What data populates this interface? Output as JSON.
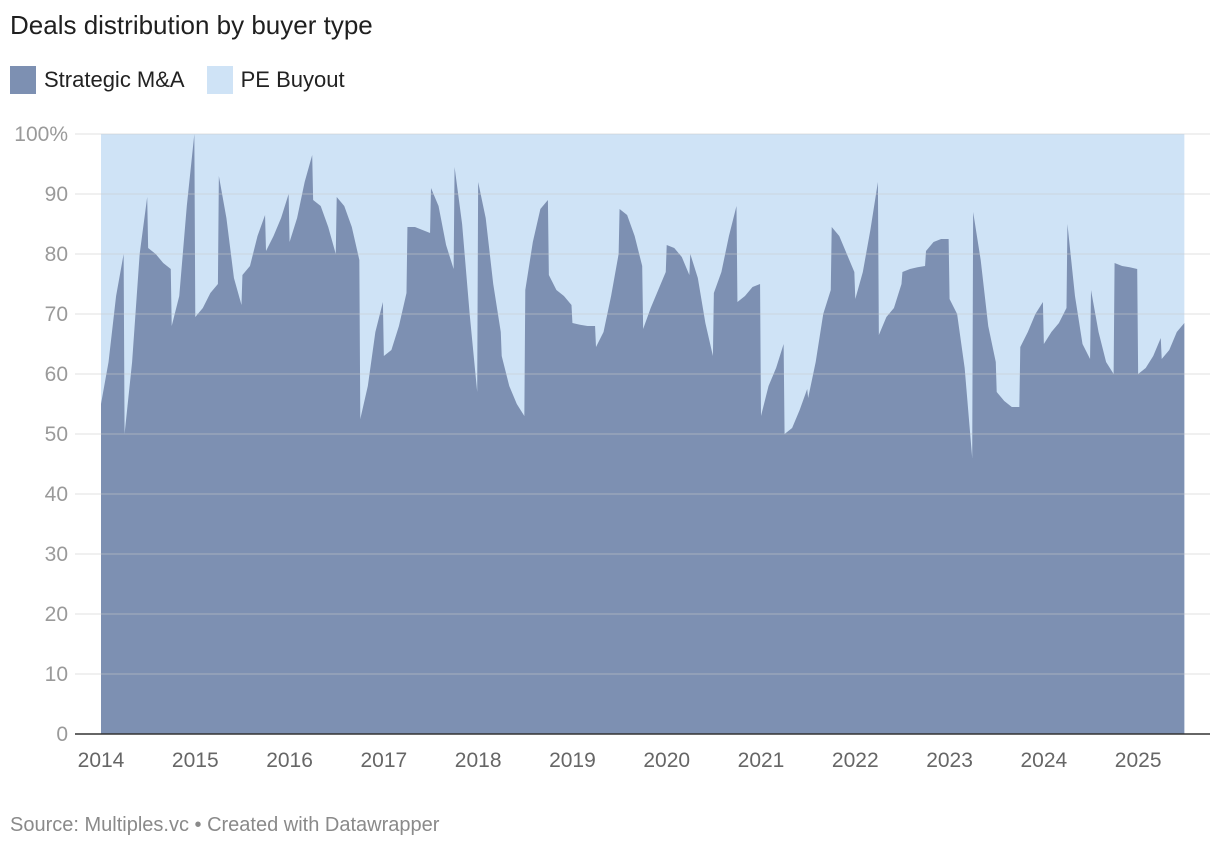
{
  "title": "Deals distribution by buyer type",
  "source": "Source: Multiples.vc • Created with Datawrapper",
  "colors": {
    "strategic": "#7d90b2",
    "pe": "#cfe3f6",
    "grid": "#e3e3e3",
    "axis": "#333333"
  },
  "chart_data": {
    "type": "area",
    "title": "Deals distribution by buyer type",
    "xlabel": "",
    "ylabel": "",
    "ylim": [
      0,
      100
    ],
    "xlim": [
      2014.0,
      2025.55
    ],
    "yticks": [
      {
        "value": 100,
        "label": "100%"
      },
      {
        "value": 90,
        "label": "90"
      },
      {
        "value": 80,
        "label": "80"
      },
      {
        "value": 70,
        "label": "70"
      },
      {
        "value": 60,
        "label": "60"
      },
      {
        "value": 50,
        "label": "50"
      },
      {
        "value": 40,
        "label": "40"
      },
      {
        "value": 30,
        "label": "30"
      },
      {
        "value": 20,
        "label": "20"
      },
      {
        "value": 10,
        "label": "10"
      },
      {
        "value": 0,
        "label": "0"
      }
    ],
    "xticks": [
      {
        "value": 2014,
        "label": "2014"
      },
      {
        "value": 2015,
        "label": "2015"
      },
      {
        "value": 2016,
        "label": "2016"
      },
      {
        "value": 2017,
        "label": "2017"
      },
      {
        "value": 2018,
        "label": "2018"
      },
      {
        "value": 2019,
        "label": "2019"
      },
      {
        "value": 2020,
        "label": "2020"
      },
      {
        "value": 2021,
        "label": "2021"
      },
      {
        "value": 2022,
        "label": "2022"
      },
      {
        "value": 2023,
        "label": "2023"
      },
      {
        "value": 2024,
        "label": "2024"
      },
      {
        "value": 2025,
        "label": "2025"
      }
    ],
    "legend": [
      {
        "name": "Strategic M&A",
        "color": "#7d90b2"
      },
      {
        "name": "PE Buyout",
        "color": "#cfe3f6"
      }
    ],
    "series": [
      {
        "name": "Strategic M&A",
        "x": [
          2014.0,
          2014.08,
          2014.16,
          2014.24,
          2014.25,
          2014.33,
          2014.41,
          2014.49,
          2014.5,
          2014.58,
          2014.66,
          2014.74,
          2014.75,
          2014.83,
          2014.91,
          2014.99,
          2015.0,
          2015.08,
          2015.16,
          2015.24,
          2015.25,
          2015.33,
          2015.41,
          2015.49,
          2015.5,
          2015.58,
          2015.66,
          2015.74,
          2015.75,
          2015.83,
          2015.91,
          2015.99,
          2016.0,
          2016.08,
          2016.16,
          2016.24,
          2016.25,
          2016.33,
          2016.41,
          2016.49,
          2016.5,
          2016.58,
          2016.66,
          2016.74,
          2016.75,
          2016.83,
          2016.91,
          2016.99,
          2017.0,
          2017.08,
          2017.16,
          2017.24,
          2017.25,
          2017.33,
          2017.41,
          2017.49,
          2017.5,
          2017.58,
          2017.66,
          2017.74,
          2017.75,
          2017.83,
          2017.91,
          2017.99,
          2018.0,
          2018.08,
          2018.16,
          2018.24,
          2018.25,
          2018.33,
          2018.41,
          2018.49,
          2018.5,
          2018.58,
          2018.66,
          2018.74,
          2018.75,
          2018.83,
          2018.91,
          2018.99,
          2019.0,
          2019.08,
          2019.16,
          2019.24,
          2019.25,
          2019.33,
          2019.41,
          2019.49,
          2019.5,
          2019.58,
          2019.66,
          2019.74,
          2019.75,
          2019.83,
          2019.91,
          2019.99,
          2020.0,
          2020.08,
          2020.16,
          2020.24,
          2020.25,
          2020.33,
          2020.41,
          2020.49,
          2020.5,
          2020.58,
          2020.66,
          2020.74,
          2020.75,
          2020.83,
          2020.91,
          2020.99,
          2021.0,
          2021.08,
          2021.16,
          2021.24,
          2021.25,
          2021.33,
          2021.41,
          2021.49,
          2021.5,
          2021.58,
          2021.66,
          2021.74,
          2021.75,
          2021.83,
          2021.91,
          2021.99,
          2022.0,
          2022.08,
          2022.16,
          2022.24,
          2022.25,
          2022.33,
          2022.41,
          2022.49,
          2022.5,
          2022.58,
          2022.66,
          2022.74,
          2022.75,
          2022.83,
          2022.91,
          2022.99,
          2023.0,
          2023.08,
          2023.16,
          2023.24,
          2023.25,
          2023.33,
          2023.41,
          2023.49,
          2023.5,
          2023.58,
          2023.66,
          2023.74,
          2023.75,
          2023.83,
          2023.91,
          2023.99,
          2024.0,
          2024.08,
          2024.16,
          2024.24,
          2024.25,
          2024.33,
          2024.41,
          2024.49,
          2024.5,
          2024.58,
          2024.66,
          2024.74,
          2024.75,
          2024.83,
          2024.91,
          2024.99,
          2025.0,
          2025.08,
          2025.16,
          2025.24,
          2025.25,
          2025.33,
          2025.41,
          2025.49
        ],
        "values": [
          55,
          62,
          73,
          80,
          50,
          62,
          80,
          89.5,
          81,
          80,
          78.5,
          77.5,
          68,
          73,
          88,
          100,
          69.5,
          71,
          73.5,
          75,
          93,
          86,
          76,
          71.5,
          76.5,
          78,
          83,
          86.5,
          80.5,
          83,
          86,
          90,
          82,
          86,
          92,
          96.5,
          89,
          88,
          84.5,
          80,
          89.5,
          88,
          84.5,
          79,
          52.5,
          58,
          67,
          72,
          63,
          64,
          68,
          73.5,
          84.5,
          84.5,
          84,
          83.5,
          91,
          88,
          81.5,
          77.5,
          94.5,
          85,
          70,
          57,
          92,
          86,
          75,
          67,
          63,
          58,
          55,
          53,
          74,
          82,
          87.5,
          89,
          76.5,
          74,
          73,
          71.5,
          68.5,
          68.2,
          68,
          68,
          64.5,
          67,
          73,
          80,
          87.5,
          86.5,
          83,
          78,
          67.5,
          71,
          74,
          77,
          81.5,
          81,
          79.5,
          76.5,
          80,
          76,
          68.5,
          63,
          73.5,
          77,
          83,
          88,
          72,
          73,
          74.5,
          75,
          53,
          58,
          61,
          65,
          50,
          51,
          54,
          57.5,
          56,
          62,
          70,
          74,
          84.5,
          83,
          80,
          77,
          72.5,
          77,
          84,
          92,
          66.5,
          69.5,
          71,
          75,
          77,
          77.5,
          77.8,
          78,
          80.5,
          82,
          82.5,
          82.5,
          72.5,
          70,
          61,
          46,
          87,
          79,
          68,
          62,
          57,
          55.5,
          54.5,
          54.5,
          64.5,
          67,
          70,
          72,
          65,
          67,
          68.5,
          71,
          85,
          73,
          65,
          62.5,
          74,
          67,
          62,
          60,
          78.5,
          78,
          77.8,
          77.5,
          60,
          61,
          63,
          66,
          62.5,
          64,
          67,
          68.5
        ]
      }
    ]
  }
}
